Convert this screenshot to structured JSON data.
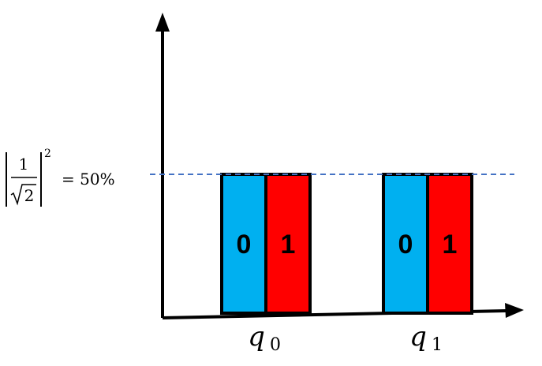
{
  "colors": {
    "state_0": "#00b0f0",
    "state_1": "#ff0000",
    "outline": "#000000",
    "reference_line": "#4472c4"
  },
  "probability_label": {
    "numerator": "1",
    "radicand": "2",
    "exponent": "2",
    "equals_text": "= 50%"
  },
  "reference_level": 0.5,
  "qubits": [
    {
      "name": "q",
      "subscript": "0",
      "bars": [
        {
          "state": "0",
          "probability": 0.5
        },
        {
          "state": "1",
          "probability": 0.5
        }
      ]
    },
    {
      "name": "q",
      "subscript": "1",
      "bars": [
        {
          "state": "0",
          "probability": 0.5
        },
        {
          "state": "1",
          "probability": 0.5
        }
      ]
    }
  ]
}
